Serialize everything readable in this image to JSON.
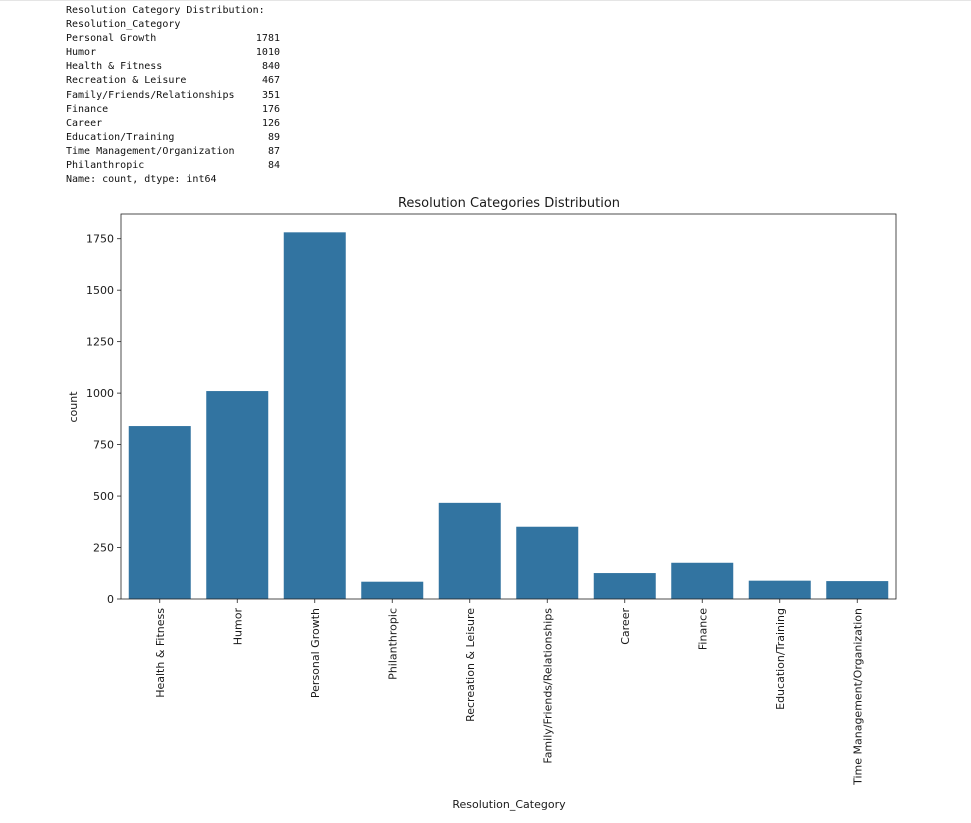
{
  "console_output": {
    "header": "Resolution Category Distribution:",
    "index_name": "Resolution_Category",
    "rows": [
      {
        "label": "Personal Growth",
        "value": "1781"
      },
      {
        "label": "Humor",
        "value": "1010"
      },
      {
        "label": "Health & Fitness",
        "value": "840"
      },
      {
        "label": "Recreation & Leisure",
        "value": "467"
      },
      {
        "label": "Family/Friends/Relationships",
        "value": "351"
      },
      {
        "label": "Finance",
        "value": "176"
      },
      {
        "label": "Career",
        "value": "126"
      },
      {
        "label": "Education/Training",
        "value": "89"
      },
      {
        "label": "Time Management/Organization",
        "value": "87"
      },
      {
        "label": "Philanthropic",
        "value": "84"
      }
    ],
    "footer": "Name: count, dtype: int64"
  },
  "chart_data": {
    "type": "bar",
    "title": "Resolution Categories Distribution",
    "xlabel": "Resolution_Category",
    "ylabel": "count",
    "categories": [
      "Health & Fitness",
      "Humor",
      "Personal Growth",
      "Philanthropic",
      "Recreation & Leisure",
      "Family/Friends/Relationships",
      "Career",
      "Finance",
      "Education/Training",
      "Time Management/Organization"
    ],
    "values": [
      840,
      1010,
      1781,
      84,
      467,
      351,
      126,
      176,
      89,
      87
    ],
    "yticks": [
      0,
      250,
      500,
      750,
      1000,
      1250,
      1500,
      1750
    ],
    "ylim": [
      0,
      1870
    ],
    "bar_color": "#3274a1",
    "grid": false,
    "legend": "none"
  }
}
